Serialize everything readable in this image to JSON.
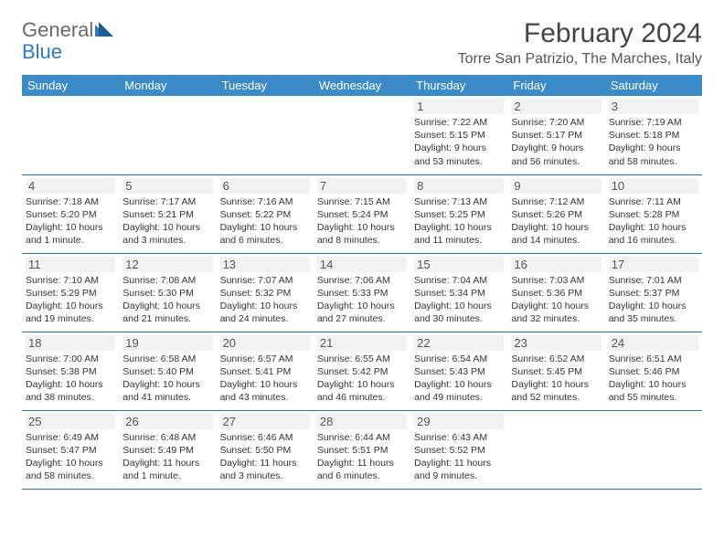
{
  "logo": {
    "text1": "General",
    "text2": "Blue"
  },
  "title": "February 2024",
  "location": "Torre San Patrizio, The Marches, Italy",
  "colors": {
    "header_bg": "#3b8bc8",
    "header_text": "#ffffff",
    "rule": "#2f6fa5",
    "daynum_bg": "#f2f2f2",
    "text": "#333333",
    "logo_gray": "#6a6a6a",
    "logo_blue": "#2e7bbf",
    "page_bg": "#ffffff"
  },
  "typography": {
    "title_fontsize": 30,
    "location_fontsize": 16,
    "dayhead_fontsize": 13,
    "body_fontsize": 10.5,
    "font_family": "Arial"
  },
  "calendar": {
    "type": "table",
    "columns": [
      "Sunday",
      "Monday",
      "Tuesday",
      "Wednesday",
      "Thursday",
      "Friday",
      "Saturday"
    ],
    "first_day_col": 4,
    "days": [
      {
        "n": 1,
        "sr": "7:22 AM",
        "ss": "5:15 PM",
        "dl": "9 hours and 53 minutes."
      },
      {
        "n": 2,
        "sr": "7:20 AM",
        "ss": "5:17 PM",
        "dl": "9 hours and 56 minutes."
      },
      {
        "n": 3,
        "sr": "7:19 AM",
        "ss": "5:18 PM",
        "dl": "9 hours and 58 minutes."
      },
      {
        "n": 4,
        "sr": "7:18 AM",
        "ss": "5:20 PM",
        "dl": "10 hours and 1 minute."
      },
      {
        "n": 5,
        "sr": "7:17 AM",
        "ss": "5:21 PM",
        "dl": "10 hours and 3 minutes."
      },
      {
        "n": 6,
        "sr": "7:16 AM",
        "ss": "5:22 PM",
        "dl": "10 hours and 6 minutes."
      },
      {
        "n": 7,
        "sr": "7:15 AM",
        "ss": "5:24 PM",
        "dl": "10 hours and 8 minutes."
      },
      {
        "n": 8,
        "sr": "7:13 AM",
        "ss": "5:25 PM",
        "dl": "10 hours and 11 minutes."
      },
      {
        "n": 9,
        "sr": "7:12 AM",
        "ss": "5:26 PM",
        "dl": "10 hours and 14 minutes."
      },
      {
        "n": 10,
        "sr": "7:11 AM",
        "ss": "5:28 PM",
        "dl": "10 hours and 16 minutes."
      },
      {
        "n": 11,
        "sr": "7:10 AM",
        "ss": "5:29 PM",
        "dl": "10 hours and 19 minutes."
      },
      {
        "n": 12,
        "sr": "7:08 AM",
        "ss": "5:30 PM",
        "dl": "10 hours and 21 minutes."
      },
      {
        "n": 13,
        "sr": "7:07 AM",
        "ss": "5:32 PM",
        "dl": "10 hours and 24 minutes."
      },
      {
        "n": 14,
        "sr": "7:06 AM",
        "ss": "5:33 PM",
        "dl": "10 hours and 27 minutes."
      },
      {
        "n": 15,
        "sr": "7:04 AM",
        "ss": "5:34 PM",
        "dl": "10 hours and 30 minutes."
      },
      {
        "n": 16,
        "sr": "7:03 AM",
        "ss": "5:36 PM",
        "dl": "10 hours and 32 minutes."
      },
      {
        "n": 17,
        "sr": "7:01 AM",
        "ss": "5:37 PM",
        "dl": "10 hours and 35 minutes."
      },
      {
        "n": 18,
        "sr": "7:00 AM",
        "ss": "5:38 PM",
        "dl": "10 hours and 38 minutes."
      },
      {
        "n": 19,
        "sr": "6:58 AM",
        "ss": "5:40 PM",
        "dl": "10 hours and 41 minutes."
      },
      {
        "n": 20,
        "sr": "6:57 AM",
        "ss": "5:41 PM",
        "dl": "10 hours and 43 minutes."
      },
      {
        "n": 21,
        "sr": "6:55 AM",
        "ss": "5:42 PM",
        "dl": "10 hours and 46 minutes."
      },
      {
        "n": 22,
        "sr": "6:54 AM",
        "ss": "5:43 PM",
        "dl": "10 hours and 49 minutes."
      },
      {
        "n": 23,
        "sr": "6:52 AM",
        "ss": "5:45 PM",
        "dl": "10 hours and 52 minutes."
      },
      {
        "n": 24,
        "sr": "6:51 AM",
        "ss": "5:46 PM",
        "dl": "10 hours and 55 minutes."
      },
      {
        "n": 25,
        "sr": "6:49 AM",
        "ss": "5:47 PM",
        "dl": "10 hours and 58 minutes."
      },
      {
        "n": 26,
        "sr": "6:48 AM",
        "ss": "5:49 PM",
        "dl": "11 hours and 1 minute."
      },
      {
        "n": 27,
        "sr": "6:46 AM",
        "ss": "5:50 PM",
        "dl": "11 hours and 3 minutes."
      },
      {
        "n": 28,
        "sr": "6:44 AM",
        "ss": "5:51 PM",
        "dl": "11 hours and 6 minutes."
      },
      {
        "n": 29,
        "sr": "6:43 AM",
        "ss": "5:52 PM",
        "dl": "11 hours and 9 minutes."
      }
    ],
    "labels": {
      "sunrise": "Sunrise:",
      "sunset": "Sunset:",
      "daylight": "Daylight:"
    }
  }
}
